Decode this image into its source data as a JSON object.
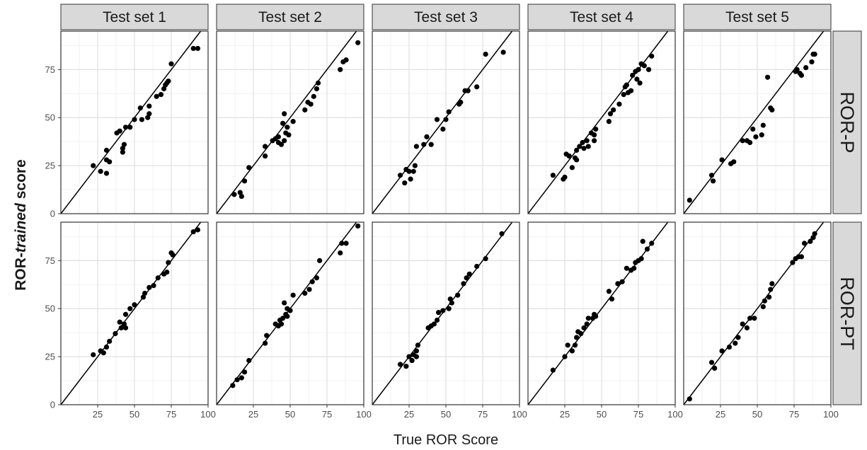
{
  "chart_data": {
    "type": "scatter",
    "layout": "facet-grid",
    "xlabel": "True ROR Score",
    "ylabel_parts": [
      "ROR-",
      "trained",
      " score"
    ],
    "columns": [
      "Test set 1",
      "Test set 2",
      "Test set 3",
      "Test set 4",
      "Test set 5"
    ],
    "rows": [
      "ROR-P",
      "ROR-PT"
    ],
    "xlim": [
      0,
      100
    ],
    "ylim": [
      0,
      95
    ],
    "x_ticks": [
      25,
      50,
      75,
      100
    ],
    "y_ticks": [
      0,
      25,
      50,
      75
    ],
    "reference_line": "y = x",
    "grid": true,
    "colors": {
      "point": "#000000",
      "panel_background": "#ffffff",
      "grid_major": "#e2e2e2",
      "grid_minor": "#f0f0f0",
      "strip_background": "#d9d9d9",
      "panel_border": "#333333"
    },
    "panels": [
      {
        "row": "ROR-P",
        "column": "Test set 1",
        "points": [
          [
            22,
            25
          ],
          [
            27,
            22
          ],
          [
            31,
            21
          ],
          [
            31,
            28
          ],
          [
            31,
            33
          ],
          [
            33,
            27
          ],
          [
            38,
            42
          ],
          [
            40,
            43
          ],
          [
            42,
            32
          ],
          [
            42,
            34
          ],
          [
            43,
            36
          ],
          [
            44,
            45
          ],
          [
            47,
            45
          ],
          [
            50,
            49
          ],
          [
            54,
            55
          ],
          [
            55,
            49
          ],
          [
            59,
            50
          ],
          [
            60,
            52
          ],
          [
            60,
            56
          ],
          [
            65,
            61
          ],
          [
            68,
            62
          ],
          [
            70,
            65
          ],
          [
            71,
            67
          ],
          [
            72,
            68
          ],
          [
            73,
            69
          ],
          [
            75,
            78
          ],
          [
            90,
            86
          ],
          [
            93,
            86
          ]
        ]
      },
      {
        "row": "ROR-P",
        "column": "Test set 2",
        "points": [
          [
            12,
            10
          ],
          [
            16,
            11
          ],
          [
            17,
            9
          ],
          [
            19,
            17
          ],
          [
            22,
            24
          ],
          [
            33,
            35
          ],
          [
            33,
            30
          ],
          [
            38,
            38
          ],
          [
            40,
            39
          ],
          [
            42,
            40
          ],
          [
            42,
            37
          ],
          [
            44,
            36
          ],
          [
            45,
            47
          ],
          [
            46,
            52
          ],
          [
            46,
            38
          ],
          [
            47,
            42
          ],
          [
            48,
            45
          ],
          [
            49,
            41
          ],
          [
            52,
            48
          ],
          [
            60,
            54
          ],
          [
            62,
            58
          ],
          [
            64,
            57
          ],
          [
            66,
            61
          ],
          [
            68,
            65
          ],
          [
            69,
            68
          ],
          [
            84,
            75
          ],
          [
            86,
            79
          ],
          [
            88,
            80
          ],
          [
            96,
            89
          ]
        ]
      },
      {
        "row": "ROR-P",
        "column": "Test set 3",
        "points": [
          [
            19,
            20
          ],
          [
            22,
            16
          ],
          [
            23,
            23
          ],
          [
            25,
            22
          ],
          [
            26,
            18
          ],
          [
            28,
            22
          ],
          [
            29,
            25
          ],
          [
            30,
            35
          ],
          [
            35,
            36
          ],
          [
            37,
            40
          ],
          [
            40,
            36
          ],
          [
            44,
            49
          ],
          [
            48,
            44
          ],
          [
            50,
            49
          ],
          [
            52,
            53
          ],
          [
            59,
            57
          ],
          [
            60,
            58
          ],
          [
            63,
            64
          ],
          [
            65,
            64
          ],
          [
            71,
            66
          ],
          [
            77,
            83
          ],
          [
            89,
            84
          ]
        ]
      },
      {
        "row": "ROR-P",
        "column": "Test set 4",
        "points": [
          [
            17,
            20
          ],
          [
            24,
            18
          ],
          [
            25,
            19
          ],
          [
            26,
            31
          ],
          [
            28,
            30
          ],
          [
            30,
            24
          ],
          [
            32,
            29
          ],
          [
            33,
            28
          ],
          [
            33,
            33
          ],
          [
            35,
            35
          ],
          [
            37,
            37
          ],
          [
            38,
            34
          ],
          [
            40,
            38
          ],
          [
            41,
            35
          ],
          [
            43,
            42
          ],
          [
            45,
            41
          ],
          [
            45,
            38
          ],
          [
            46,
            44
          ],
          [
            55,
            48
          ],
          [
            56,
            52
          ],
          [
            58,
            54
          ],
          [
            62,
            57
          ],
          [
            65,
            62
          ],
          [
            66,
            66
          ],
          [
            67,
            67
          ],
          [
            68,
            63
          ],
          [
            70,
            64
          ],
          [
            71,
            72
          ],
          [
            73,
            74
          ],
          [
            74,
            70
          ],
          [
            75,
            75
          ],
          [
            76,
            68
          ],
          [
            77,
            78
          ],
          [
            79,
            77
          ],
          [
            82,
            75
          ],
          [
            84,
            82
          ]
        ]
      },
      {
        "row": "ROR-P",
        "column": "Test set 5",
        "points": [
          [
            4,
            7
          ],
          [
            19,
            20
          ],
          [
            20,
            17
          ],
          [
            26,
            28
          ],
          [
            32,
            26
          ],
          [
            34,
            27
          ],
          [
            40,
            38
          ],
          [
            43,
            38
          ],
          [
            45,
            37
          ],
          [
            47,
            44
          ],
          [
            49,
            40
          ],
          [
            53,
            41
          ],
          [
            54,
            46
          ],
          [
            57,
            71
          ],
          [
            59,
            55
          ],
          [
            60,
            54
          ],
          [
            76,
            74
          ],
          [
            77,
            75
          ],
          [
            79,
            73
          ],
          [
            80,
            72
          ],
          [
            83,
            76
          ],
          [
            87,
            79
          ],
          [
            88,
            83
          ],
          [
            89,
            83
          ]
        ]
      },
      {
        "row": "ROR-PT",
        "column": "Test set 1",
        "points": [
          [
            22,
            26
          ],
          [
            27,
            28
          ],
          [
            29,
            27
          ],
          [
            31,
            30
          ],
          [
            33,
            33
          ],
          [
            37,
            37
          ],
          [
            40,
            43
          ],
          [
            41,
            40
          ],
          [
            43,
            42
          ],
          [
            44,
            40
          ],
          [
            44,
            47
          ],
          [
            47,
            50
          ],
          [
            50,
            52
          ],
          [
            56,
            56
          ],
          [
            57,
            58
          ],
          [
            60,
            61
          ],
          [
            63,
            62
          ],
          [
            66,
            66
          ],
          [
            70,
            68
          ],
          [
            72,
            69
          ],
          [
            73,
            74
          ],
          [
            75,
            79
          ],
          [
            76,
            78
          ],
          [
            90,
            90
          ],
          [
            93,
            91
          ]
        ]
      },
      {
        "row": "ROR-PT",
        "column": "Test set 2",
        "points": [
          [
            11,
            10
          ],
          [
            14,
            13
          ],
          [
            17,
            14
          ],
          [
            19,
            17
          ],
          [
            22,
            23
          ],
          [
            33,
            32
          ],
          [
            34,
            36
          ],
          [
            40,
            42
          ],
          [
            42,
            41
          ],
          [
            43,
            44
          ],
          [
            44,
            42
          ],
          [
            45,
            45
          ],
          [
            46,
            53
          ],
          [
            47,
            47
          ],
          [
            48,
            46
          ],
          [
            48,
            50
          ],
          [
            50,
            49
          ],
          [
            52,
            57
          ],
          [
            60,
            58
          ],
          [
            63,
            60
          ],
          [
            65,
            64
          ],
          [
            68,
            66
          ],
          [
            70,
            75
          ],
          [
            84,
            79
          ],
          [
            85,
            84
          ],
          [
            88,
            84
          ],
          [
            96,
            93
          ]
        ]
      },
      {
        "row": "ROR-PT",
        "column": "Test set 3",
        "points": [
          [
            19,
            21
          ],
          [
            23,
            20
          ],
          [
            25,
            25
          ],
          [
            27,
            23
          ],
          [
            28,
            26
          ],
          [
            30,
            25
          ],
          [
            30,
            28
          ],
          [
            31,
            31
          ],
          [
            38,
            40
          ],
          [
            40,
            41
          ],
          [
            42,
            42
          ],
          [
            44,
            44
          ],
          [
            45,
            48
          ],
          [
            48,
            49
          ],
          [
            52,
            50
          ],
          [
            53,
            55
          ],
          [
            54,
            53
          ],
          [
            58,
            57
          ],
          [
            62,
            63
          ],
          [
            64,
            66
          ],
          [
            66,
            68
          ],
          [
            71,
            72
          ],
          [
            77,
            76
          ],
          [
            88,
            89
          ]
        ]
      },
      {
        "row": "ROR-PT",
        "column": "Test set 4",
        "points": [
          [
            17,
            18
          ],
          [
            25,
            25
          ],
          [
            27,
            31
          ],
          [
            30,
            28
          ],
          [
            32,
            31
          ],
          [
            33,
            35
          ],
          [
            34,
            38
          ],
          [
            36,
            37
          ],
          [
            38,
            40
          ],
          [
            40,
            42
          ],
          [
            41,
            45
          ],
          [
            44,
            45
          ],
          [
            45,
            47
          ],
          [
            46,
            46
          ],
          [
            55,
            59
          ],
          [
            57,
            55
          ],
          [
            61,
            63
          ],
          [
            64,
            64
          ],
          [
            67,
            71
          ],
          [
            70,
            70
          ],
          [
            72,
            71
          ],
          [
            73,
            74
          ],
          [
            75,
            75
          ],
          [
            77,
            76
          ],
          [
            78,
            85
          ],
          [
            81,
            81
          ],
          [
            84,
            84
          ]
        ]
      },
      {
        "row": "ROR-PT",
        "column": "Test set 5",
        "points": [
          [
            4,
            3
          ],
          [
            19,
            22
          ],
          [
            21,
            19
          ],
          [
            26,
            28
          ],
          [
            31,
            30
          ],
          [
            35,
            32
          ],
          [
            37,
            35
          ],
          [
            40,
            42
          ],
          [
            43,
            40
          ],
          [
            45,
            45
          ],
          [
            48,
            45
          ],
          [
            54,
            51
          ],
          [
            55,
            54
          ],
          [
            58,
            56
          ],
          [
            59,
            60
          ],
          [
            60,
            63
          ],
          [
            74,
            74
          ],
          [
            76,
            76
          ],
          [
            78,
            77
          ],
          [
            80,
            77
          ],
          [
            82,
            84
          ],
          [
            86,
            85
          ],
          [
            88,
            87
          ],
          [
            89,
            89
          ]
        ]
      }
    ]
  }
}
